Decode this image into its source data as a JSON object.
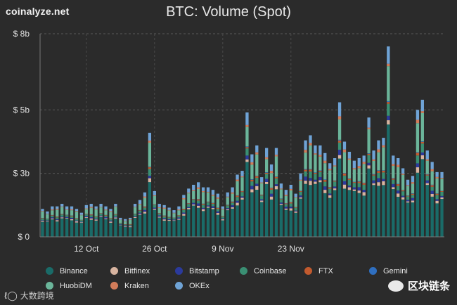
{
  "brand": "coinalyze.net",
  "chart_data": {
    "type": "bar",
    "stacked": true,
    "title": "BTC: Volume (Spot)",
    "ylim": [
      0,
      8
    ],
    "yticks": [
      {
        "value": 0,
        "label": "$ 0"
      },
      {
        "value": 2.5,
        "label": "$ 3b"
      },
      {
        "value": 5,
        "label": "$ 5b"
      },
      {
        "value": 8,
        "label": "$ 8b"
      }
    ],
    "xticks": [
      {
        "index": 9,
        "label": "12 Oct"
      },
      {
        "index": 23,
        "label": "26 Oct"
      },
      {
        "index": 37,
        "label": "9 Nov"
      },
      {
        "index": 51,
        "label": "23 Nov"
      }
    ],
    "categories": [
      "Binance",
      "Bitfinex",
      "Bitstamp",
      "Coinbase",
      "FTX",
      "Gemini",
      "HuobiDM",
      "Kraken",
      "OKEx"
    ],
    "colors": [
      "#1a6b68",
      "#d8b4a0",
      "#2b3a9c",
      "#3a8f73",
      "#c25a2e",
      "#2f6fc0",
      "#6bb59a",
      "#d27c5a",
      "#6fa3d6"
    ],
    "totals": [
      1.1,
      1.0,
      1.2,
      1.2,
      1.3,
      1.2,
      1.2,
      1.1,
      0.95,
      1.25,
      1.3,
      1.2,
      1.3,
      1.2,
      1.1,
      1.3,
      0.75,
      0.7,
      0.75,
      1.3,
      1.45,
      1.75,
      4.1,
      1.8,
      1.3,
      1.25,
      1.15,
      1.05,
      1.2,
      1.65,
      1.9,
      2.05,
      2.15,
      1.95,
      1.95,
      1.85,
      1.7,
      1.2,
      1.75,
      1.95,
      2.45,
      2.6,
      4.9,
      3.25,
      3.6,
      2.35,
      3.5,
      2.85,
      3.5,
      2.1,
      1.85,
      2.05,
      1.7,
      2.5,
      3.8,
      4.0,
      3.6,
      3.6,
      3.3,
      2.9,
      3.1,
      5.3,
      3.75,
      3.35,
      3.0,
      3.1,
      3.2,
      4.7,
      3.4,
      3.8,
      3.9,
      7.5,
      3.2,
      3.1,
      2.7,
      2.25,
      2.4,
      5.0,
      5.4,
      3.4,
      2.95,
      2.55,
      2.55
    ],
    "shares": {
      "Binance": 0.56,
      "Bitfinex": 0.03,
      "Bitstamp": 0.03,
      "Coinbase": 0.06,
      "FTX": 0.015,
      "Gemini": 0.005,
      "HuobiDM": 0.19,
      "Kraken": 0.02,
      "OKEx": 0.09
    },
    "unit": "USD billions"
  },
  "legend": [
    {
      "label": "Binance",
      "color": "#1a6b68"
    },
    {
      "label": "Bitfinex",
      "color": "#d8b4a0"
    },
    {
      "label": "Bitstamp",
      "color": "#2b3a9c"
    },
    {
      "label": "Coinbase",
      "color": "#3a8f73"
    },
    {
      "label": "FTX",
      "color": "#c25a2e"
    },
    {
      "label": "Gemini",
      "color": "#2f6fc0"
    },
    {
      "label": "HuobiDM",
      "color": "#6bb59a"
    },
    {
      "label": "Kraken",
      "color": "#d27c5a"
    },
    {
      "label": "OKEx",
      "color": "#6fa3d6"
    }
  ],
  "watermarks": {
    "left": "大数跨境",
    "right": "区块链条"
  }
}
